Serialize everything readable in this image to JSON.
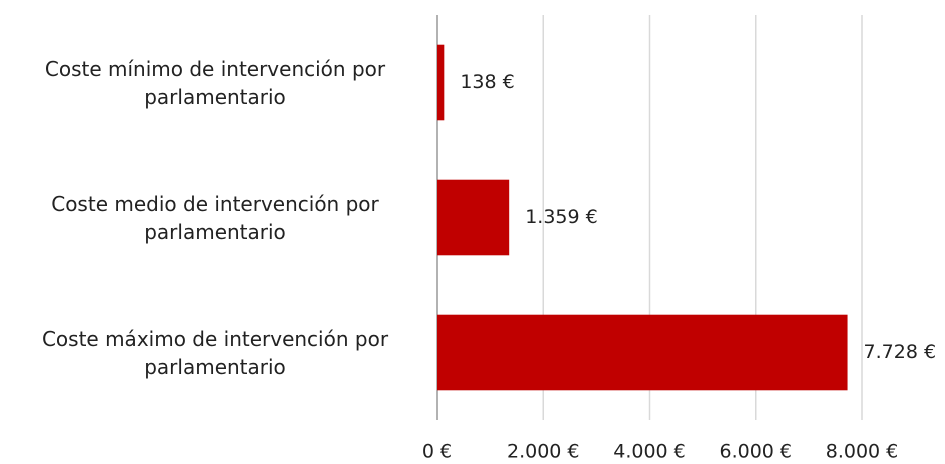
{
  "chart_data": {
    "type": "bar",
    "orientation": "horizontal",
    "categories": [
      "Coste mínimo de intervención por parlamentario",
      "Coste medio de intervención por parlamentario",
      "Coste máximo de intervención por parlamentario"
    ],
    "values": [
      138,
      1359,
      7728
    ],
    "value_labels": [
      "138 €",
      "1.359 €",
      "7.728 €"
    ],
    "color": "#c00000",
    "xlim": [
      0,
      8000
    ],
    "xticks": [
      {
        "value": 0,
        "label": "0 €"
      },
      {
        "value": 2000,
        "label": "2.000 €"
      },
      {
        "value": 4000,
        "label": "4.000 €"
      },
      {
        "value": 6000,
        "label": "6.000 €"
      },
      {
        "value": 8000,
        "label": "8.000 €"
      }
    ],
    "grid": true
  }
}
